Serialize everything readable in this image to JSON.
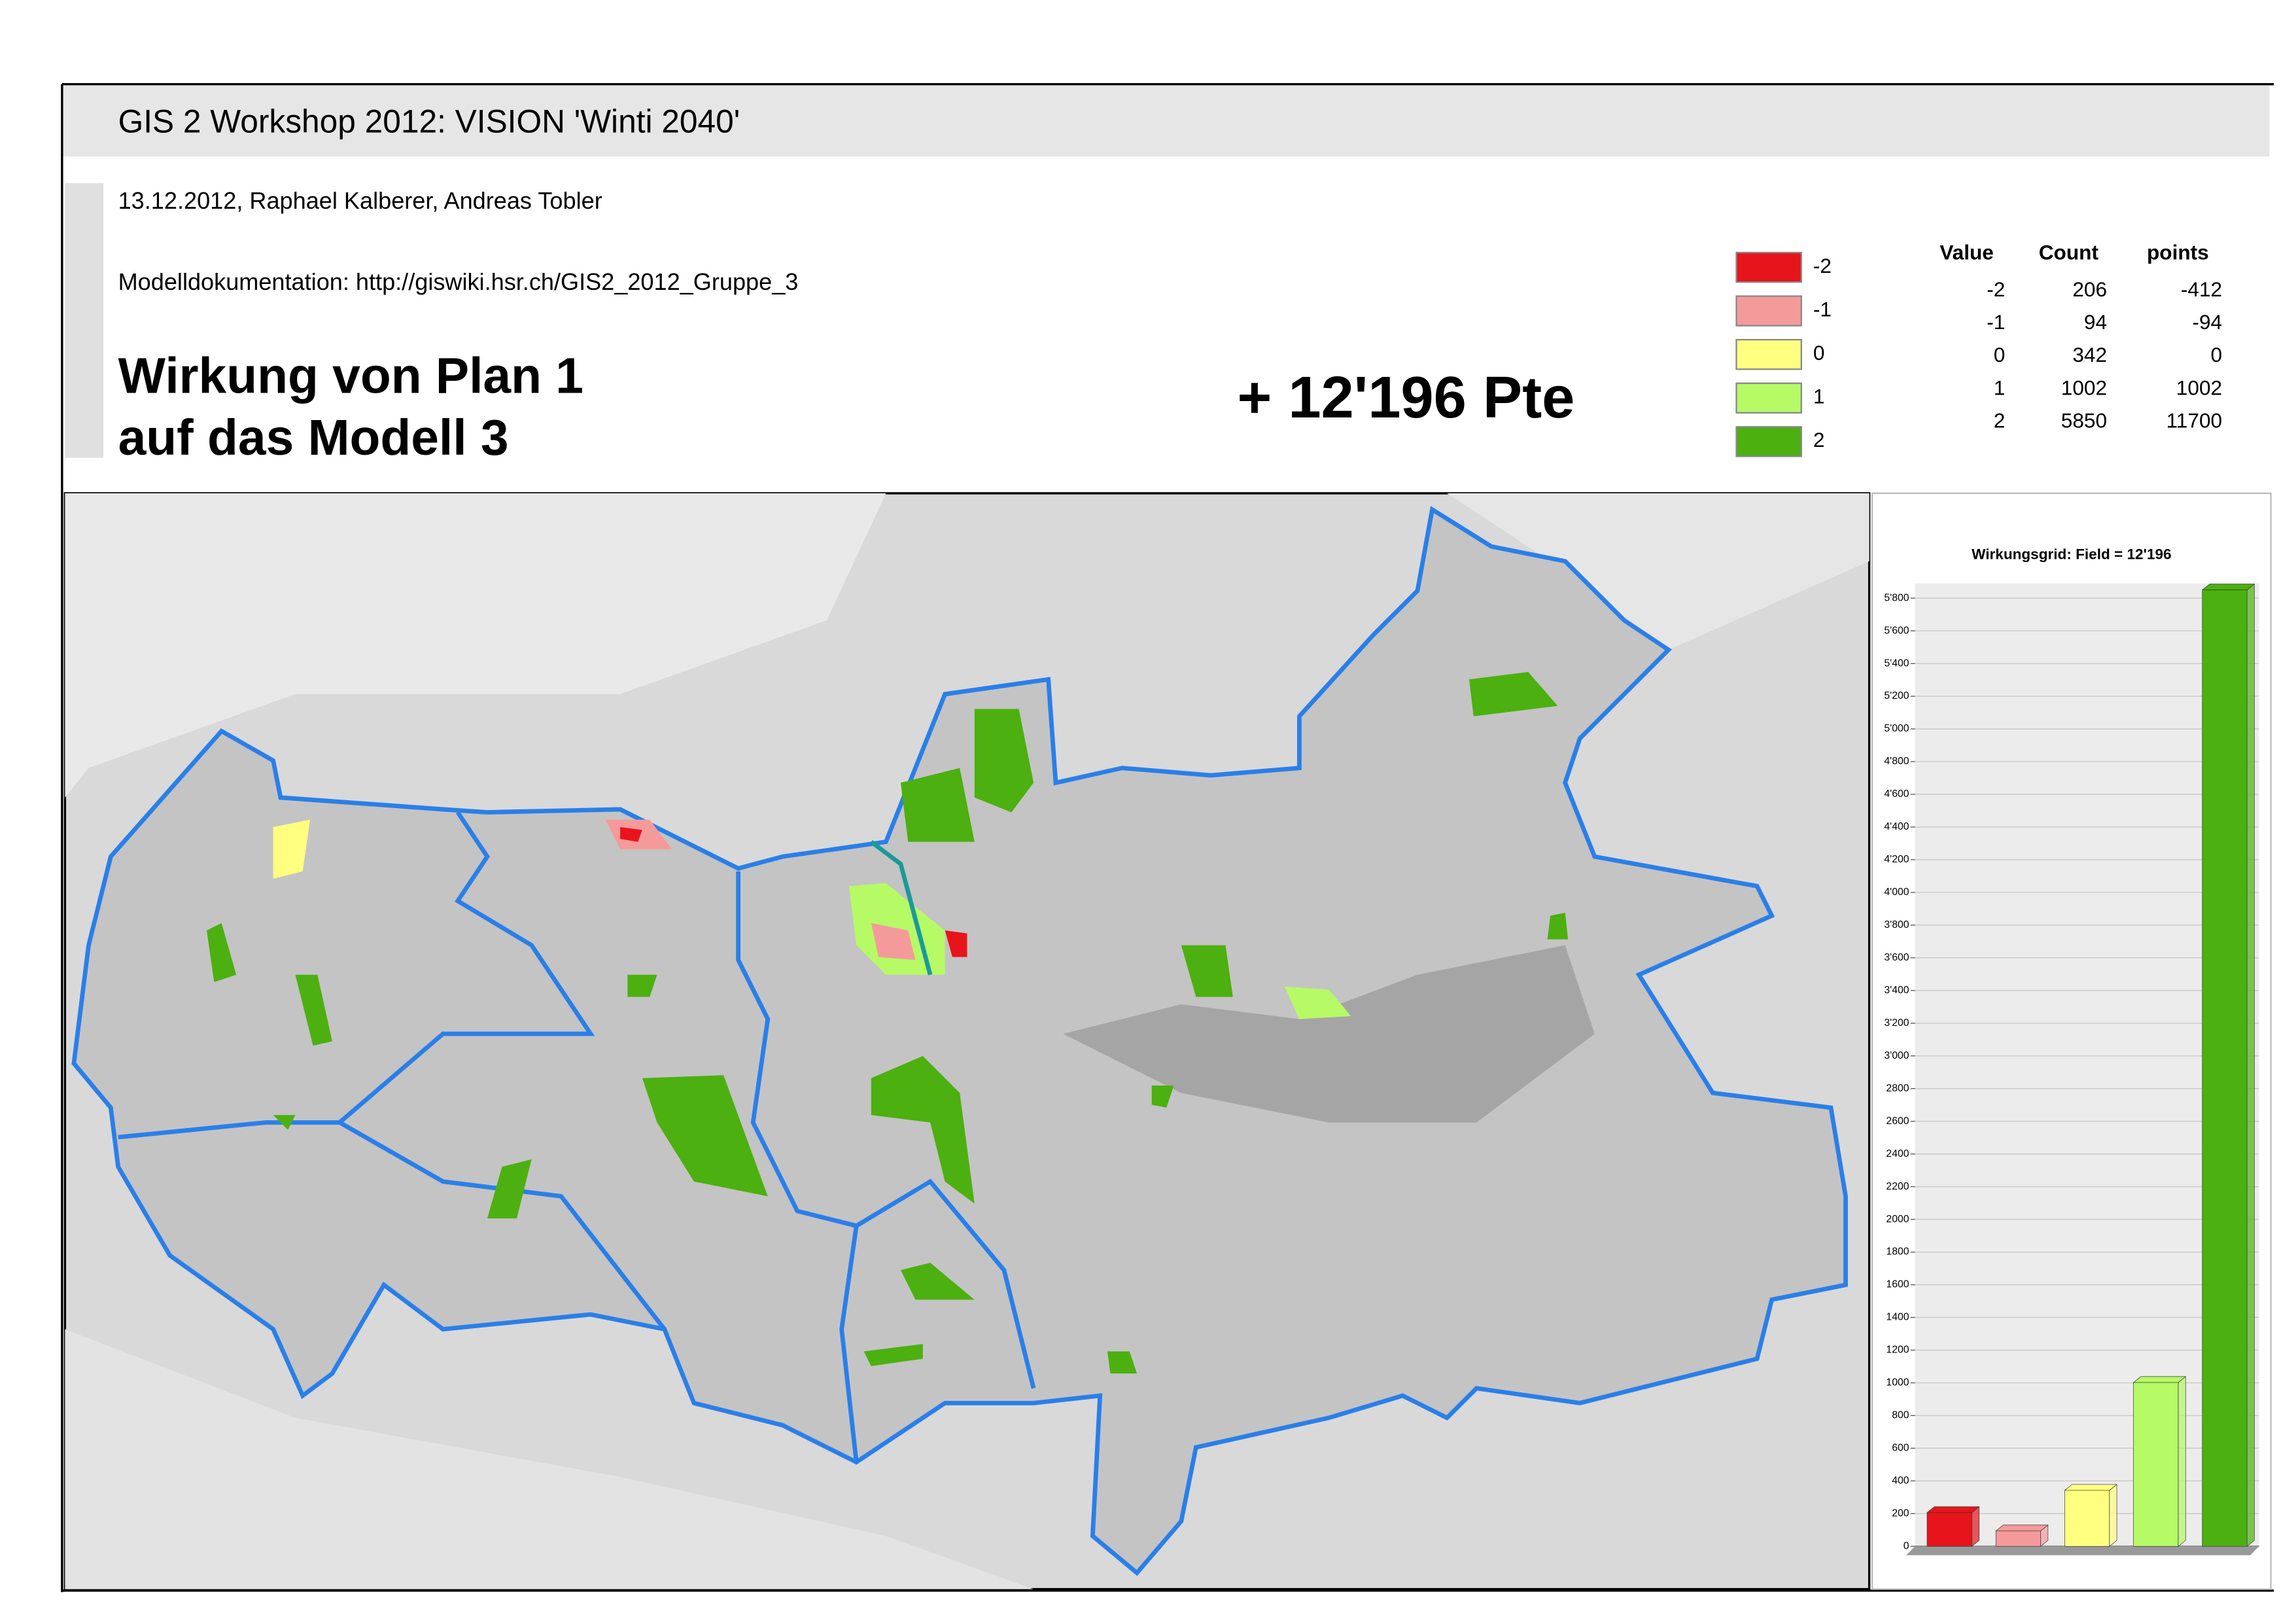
{
  "header": {
    "title": "GIS 2 Workshop 2012: VISION 'Winti 2040'",
    "meta": "13.12.2012, Raphael Kalberer, Andreas Tobler",
    "doc": "Modelldokumentation: http://giswiki.hsr.ch/GIS2_2012_Gruppe_3",
    "heading": [
      "Wirkung von Plan 1",
      "auf das Modell 3"
    ],
    "total": "+ 12'196 Pte"
  },
  "legend": [
    {
      "label": "-2",
      "color": "#e8141b"
    },
    {
      "label": "-1",
      "color": "#f59a9a"
    },
    {
      "label": "0",
      "color": "#ffff80"
    },
    {
      "label": "1",
      "color": "#b6fa66"
    },
    {
      "label": "2",
      "color": "#4cb010"
    }
  ],
  "table": {
    "columns": [
      "Value",
      "Count",
      "points"
    ],
    "rows": [
      [
        "-2",
        "206",
        "-412"
      ],
      [
        "-1",
        "94",
        "-94"
      ],
      [
        "0",
        "342",
        "0"
      ],
      [
        "1",
        "1002",
        "1002"
      ],
      [
        "2",
        "5850",
        "11700"
      ]
    ]
  },
  "chart_data": {
    "type": "bar",
    "title": "Wirkungsgrid: Field = 12'196",
    "categories": [
      null,
      null,
      null,
      null,
      null
    ],
    "values": [
      206,
      94,
      342,
      1002,
      5850
    ],
    "colors": [
      "#e8141b",
      "#f59a9a",
      "#ffff80",
      "#b6fa66",
      "#4cb010"
    ],
    "ylim": [
      0,
      5800
    ],
    "yticks": [
      0,
      200,
      400,
      600,
      800,
      1000,
      1200,
      1400,
      1600,
      1800,
      2000,
      2200,
      2400,
      2600,
      2800,
      {
        "value": 3000,
        "label": "3'000"
      },
      {
        "value": 3200,
        "label": "3'200"
      },
      {
        "value": 3400,
        "label": "3'400"
      },
      {
        "value": 3600,
        "label": "3'600"
      },
      {
        "value": 3800,
        "label": "3'800"
      },
      {
        "value": 4000,
        "label": "4'000"
      },
      {
        "value": 4200,
        "label": "4'200"
      },
      {
        "value": 4400,
        "label": "4'400"
      },
      {
        "value": 4600,
        "label": "4'600"
      },
      {
        "value": 4800,
        "label": "4'800"
      },
      {
        "value": 5000,
        "label": "5'000"
      },
      {
        "value": 5200,
        "label": "5'200"
      },
      {
        "value": 5400,
        "label": "5'400"
      },
      {
        "value": 5600,
        "label": "5'600"
      },
      {
        "value": 5800,
        "label": "5'800"
      }
    ],
    "grid": true
  }
}
